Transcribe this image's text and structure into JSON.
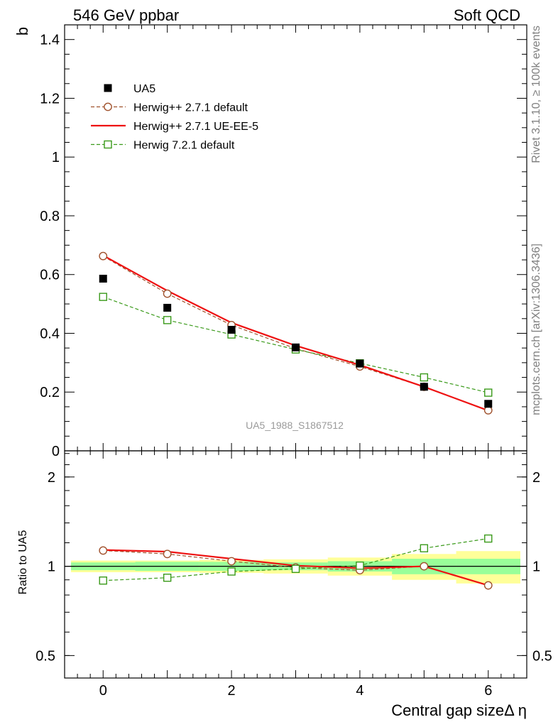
{
  "header": {
    "left": "546 GeV ppbar",
    "right": "Soft QCD"
  },
  "side_labels": {
    "top": "Rivet 3.1.10, ≥ 100k events",
    "bottom": "mcplots.cern.ch [arXiv:1306.3436]"
  },
  "watermark": "UA5_1988_S1867512",
  "chart_data": [
    {
      "type": "line",
      "ylabel": "b",
      "xlabel": "Central gap sizeΔ η",
      "xlim": [
        -0.6,
        6.6
      ],
      "ylim": [
        0,
        1.45
      ],
      "yticks": [
        0,
        0.2,
        0.4,
        0.6,
        0.8,
        1,
        1.2,
        1.4
      ],
      "ytick_labels": [
        "0",
        "0.2",
        "0.4",
        "0.6",
        "0.8",
        "1",
        "1.2",
        "1.4"
      ],
      "xticks": [
        0,
        2,
        4,
        6
      ],
      "xtick_labels": [
        "0",
        "2",
        "4",
        "6"
      ],
      "legend_position": "top-left",
      "x": [
        0,
        1,
        2,
        3,
        4,
        5,
        6
      ],
      "series": [
        {
          "name": "UA5",
          "color": "#000000",
          "marker": "filled-square",
          "line": "none",
          "values": [
            0.586,
            0.487,
            0.412,
            0.352,
            0.297,
            0.218,
            0.16
          ]
        },
        {
          "name": "Herwig++ 2.7.1 default",
          "color": "#a0522d",
          "marker": "open-circle",
          "line": "dashed",
          "values": [
            0.663,
            0.535,
            0.428,
            0.348,
            0.287,
            0.218,
            0.138
          ]
        },
        {
          "name": "Herwig++ 2.7.1 UE-EE-5",
          "color": "#ee1111",
          "marker": "none",
          "line": "solid",
          "values": [
            0.665,
            0.545,
            0.436,
            0.358,
            0.292,
            0.218,
            0.137
          ]
        },
        {
          "name": "Herwig 7.2.1 default",
          "color": "#3a9a1a",
          "marker": "open-square",
          "line": "dashed",
          "values": [
            0.524,
            0.445,
            0.396,
            0.345,
            0.298,
            0.25,
            0.198
          ]
        }
      ]
    },
    {
      "type": "line",
      "ylabel": "Ratio to UA5",
      "xlabel": "Central gap sizeΔ η",
      "xlim": [
        -0.6,
        6.6
      ],
      "ylim": [
        0.42,
        2.45
      ],
      "yscale": "log",
      "yticks": [
        0.5,
        1,
        2
      ],
      "ytick_labels": [
        "0.5",
        "1",
        "2"
      ],
      "xticks": [
        0,
        2,
        4,
        6
      ],
      "xtick_labels": [
        "0",
        "2",
        "4",
        "6"
      ],
      "x": [
        0,
        1,
        2,
        3,
        4,
        5,
        6
      ],
      "bands": {
        "bin_edges": [
          -0.5,
          0.5,
          1.5,
          2.5,
          3.5,
          4.5,
          5.5,
          6.5
        ],
        "inner": [
          [
            0.97,
            1.03
          ],
          [
            0.965,
            1.035
          ],
          [
            0.965,
            1.035
          ],
          [
            0.97,
            1.03
          ],
          [
            0.96,
            1.04
          ],
          [
            0.94,
            1.06
          ],
          [
            0.94,
            1.06
          ]
        ],
        "outer": [
          [
            0.955,
            1.045
          ],
          [
            0.955,
            1.045
          ],
          [
            0.95,
            1.05
          ],
          [
            0.945,
            1.055
          ],
          [
            0.93,
            1.07
          ],
          [
            0.9,
            1.1
          ],
          [
            0.875,
            1.125
          ]
        ],
        "inner_color": "#99ff99",
        "outer_color": "#ffff99"
      },
      "series": [
        {
          "name": "Herwig++ 2.7.1 default",
          "color": "#a0522d",
          "marker": "open-circle",
          "line": "dashed",
          "values": [
            1.13,
            1.1,
            1.04,
            0.99,
            0.97,
            1.0,
            0.862
          ]
        },
        {
          "name": "Herwig++ 2.7.1 UE-EE-5",
          "color": "#ee1111",
          "marker": "none",
          "line": "solid",
          "values": [
            1.135,
            1.12,
            1.06,
            1.005,
            0.985,
            1.0,
            0.862
          ]
        },
        {
          "name": "Herwig 7.2.1 default",
          "color": "#3a9a1a",
          "marker": "open-square",
          "line": "dashed",
          "values": [
            0.895,
            0.915,
            0.96,
            0.98,
            1.005,
            1.15,
            1.24
          ]
        }
      ]
    }
  ]
}
